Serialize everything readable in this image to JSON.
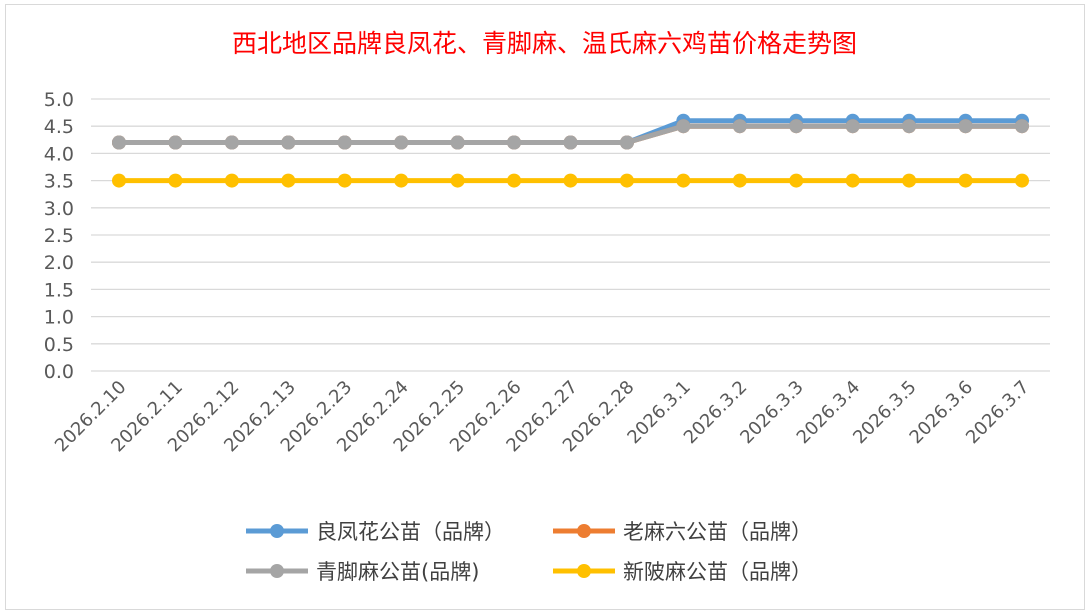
{
  "chart_data": {
    "type": "line",
    "title": "西北地区品牌良凤花、青脚麻、温氏麻六鸡苗价格走势图",
    "categories": [
      "2026.2.10",
      "2026.2.11",
      "2026.2.12",
      "2026.2.13",
      "2026.2.23",
      "2026.2.24",
      "2026.2.25",
      "2026.2.26",
      "2026.2.27",
      "2026.2.28",
      "2026.3.1",
      "2026.3.2",
      "2026.3.3",
      "2026.3.4",
      "2026.3.5",
      "2026.3.6",
      "2026.3.7"
    ],
    "ylim": [
      0,
      5.0
    ],
    "yticks": [
      "0.0",
      "0.5",
      "1.0",
      "1.5",
      "2.0",
      "2.5",
      "3.0",
      "3.5",
      "4.0",
      "4.5",
      "5.0"
    ],
    "grid": true,
    "legend_position": "bottom",
    "series": [
      {
        "name": "良凤花公苗（品牌）",
        "color": "#5b9bd5",
        "values": [
          4.2,
          4.2,
          4.2,
          4.2,
          4.2,
          4.2,
          4.2,
          4.2,
          4.2,
          4.2,
          4.6,
          4.6,
          4.6,
          4.6,
          4.6,
          4.6,
          4.6
        ]
      },
      {
        "name": "老麻六公苗（品牌）",
        "color": "#ed7d31",
        "values": [
          4.2,
          4.2,
          4.2,
          4.2,
          4.2,
          4.2,
          4.2,
          4.2,
          4.2,
          4.2,
          4.5,
          4.5,
          4.5,
          4.5,
          4.5,
          4.5,
          4.5
        ]
      },
      {
        "name": "青脚麻公苗(品牌)",
        "color": "#a5a5a5",
        "values": [
          4.2,
          4.2,
          4.2,
          4.2,
          4.2,
          4.2,
          4.2,
          4.2,
          4.2,
          4.2,
          4.5,
          4.5,
          4.5,
          4.5,
          4.5,
          4.5,
          4.5
        ]
      },
      {
        "name": "新陂麻公苗（品牌）",
        "color": "#ffc000",
        "values": [
          3.5,
          3.5,
          3.5,
          3.5,
          3.5,
          3.5,
          3.5,
          3.5,
          3.5,
          3.5,
          3.5,
          3.5,
          3.5,
          3.5,
          3.5,
          3.5,
          3.5
        ]
      }
    ]
  }
}
